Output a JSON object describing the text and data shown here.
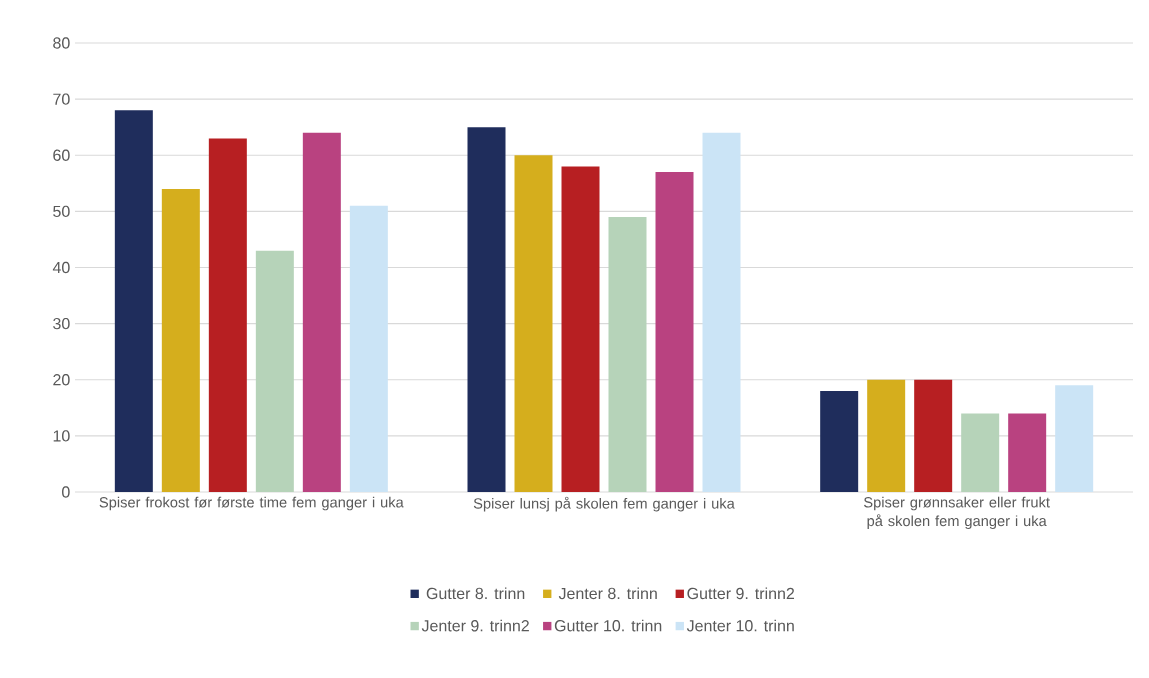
{
  "chart_data": {
    "type": "bar",
    "categories": [
      "Spiser frokost før første time fem ganger i uka",
      "Spiser lunsj på skolen fem ganger i uka",
      "Spiser grønnsaker eller frukt på skolen fem ganger i uka"
    ],
    "series": [
      {
        "name": "Gutter 8. trinn",
        "color": "#1f2d5c",
        "values": [
          68,
          65,
          18
        ]
      },
      {
        "name": "Jenter 8. trinn",
        "color": "#d5ae1d",
        "values": [
          54,
          60,
          20
        ]
      },
      {
        "name": "Gutter 9. trinn2",
        "color": "#b71f22",
        "values": [
          63,
          58,
          20
        ]
      },
      {
        "name": "Jenter 9. trinn2",
        "color": "#b6d3b9",
        "values": [
          43,
          49,
          14
        ]
      },
      {
        "name": "Gutter 10. trinn",
        "color": "#b94280",
        "values": [
          64,
          57,
          14
        ]
      },
      {
        "name": "Jenter 10. trinn",
        "color": "#cbe4f6",
        "values": [
          51,
          64,
          19
        ]
      }
    ],
    "ylim": [
      0,
      80
    ],
    "yticks": [
      0,
      10,
      20,
      30,
      40,
      50,
      60,
      70,
      80
    ],
    "grid": "y",
    "legend": "bottom"
  }
}
